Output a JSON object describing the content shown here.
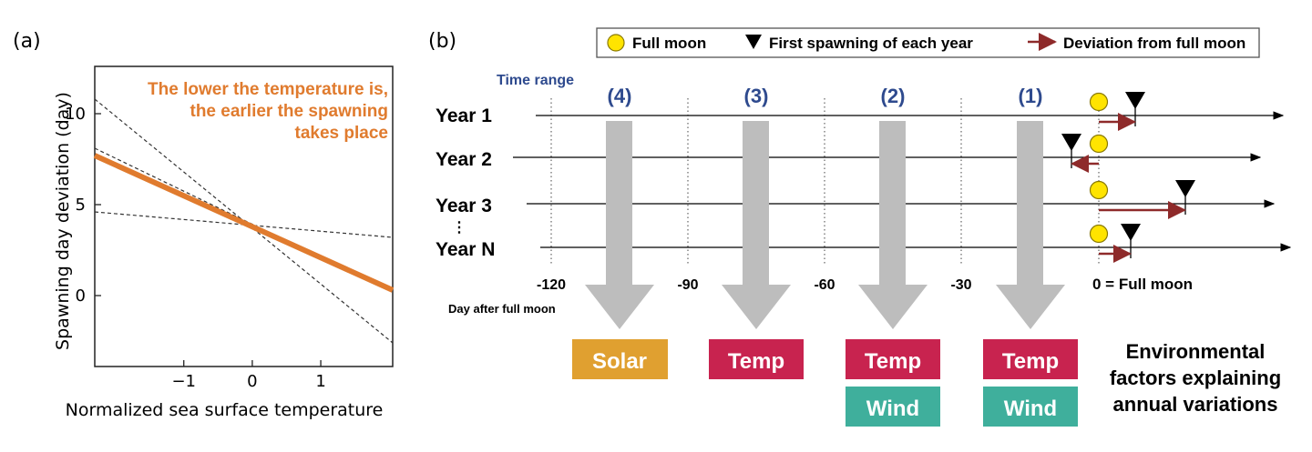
{
  "panel_a": {
    "label": "(a)",
    "annotation": [
      "The lower the temperature is,",
      "the earlier the spawning",
      "takes place"
    ],
    "annotation_color": "#E07B2E",
    "chart_data": {
      "type": "line",
      "xlabel": "Normalized sea surface temperature",
      "ylabel": "Spawning day deviation (day)",
      "xlim": [
        -2.3,
        2.05
      ],
      "ylim": [
        -3.9,
        12.6
      ],
      "xticks": [
        -1,
        0,
        1
      ],
      "xtick_labels": [
        "−1",
        "0",
        "1"
      ],
      "yticks": [
        0,
        5,
        10
      ],
      "ytick_labels": [
        "0",
        "5",
        "10"
      ],
      "grid": false,
      "series": [
        {
          "role": "fit",
          "color": "#E07B2E",
          "style": "solid",
          "x": [
            -2.3,
            2.05
          ],
          "y": [
            7.7,
            0.3
          ]
        },
        {
          "role": "bound",
          "color": "#333333",
          "style": "dashed",
          "x": [
            -2.3,
            2.05
          ],
          "y": [
            10.8,
            -2.6
          ]
        },
        {
          "role": "bound",
          "color": "#333333",
          "style": "dashed",
          "x": [
            -2.3,
            2.05
          ],
          "y": [
            4.6,
            3.2
          ]
        },
        {
          "role": "bound",
          "color": "#333333",
          "style": "dashed",
          "x": [
            -2.3,
            2.05
          ],
          "y": [
            8.1,
            0.2
          ]
        },
        {
          "role": "bound",
          "color": "#333333",
          "style": "dashed",
          "x": [
            -2.3,
            2.05
          ],
          "y": [
            7.8,
            0.4
          ]
        }
      ]
    }
  },
  "panel_b": {
    "label": "(b)",
    "legend": {
      "full_moon": "Full moon",
      "first_spawning": "First spawning of each year",
      "deviation": "Deviation from full moon"
    },
    "time_range_label": "Time range",
    "range_labels": [
      "(4)",
      "(3)",
      "(2)",
      "(1)"
    ],
    "years": [
      "Year 1",
      "Year 2",
      "Year 3",
      "Year N"
    ],
    "spawn_offsets_days": [
      8,
      -6,
      19,
      7
    ],
    "ticks": [
      "-120",
      "-90",
      "-60",
      "-30",
      "0 = Full moon"
    ],
    "tick_days": [
      -120,
      -90,
      -60,
      -30,
      0
    ],
    "axis_title": "Day after full moon",
    "factor_boxes": [
      [
        "Solar"
      ],
      [
        "Temp"
      ],
      [
        "Temp",
        "Wind"
      ],
      [
        "Temp",
        "Wind"
      ]
    ],
    "factor_colors": {
      "Solar": "#E0A030",
      "Temp": "#C8234F",
      "Wind": "#3FAF9C"
    },
    "factors_caption": [
      "Environmental",
      "factors explaining",
      "annual variations"
    ],
    "colors": {
      "moon_fill": "#FFE400",
      "moon_stroke": "#8A7A00",
      "arrow": "#8E2A2A",
      "gray_arrow": "#BDBDBD",
      "range_label": "#2E4A8E"
    }
  }
}
